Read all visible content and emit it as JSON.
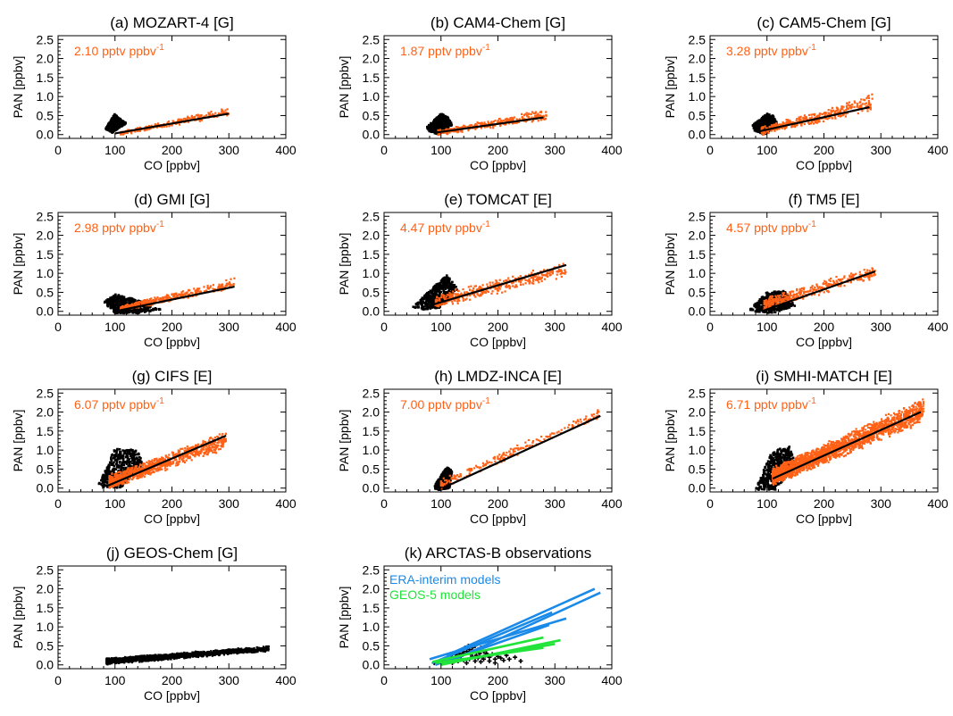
{
  "figure": {
    "orange": "#ff6116",
    "black": "#000000",
    "blue": "#1a8ae8",
    "green": "#22e33a"
  },
  "chart_data": [
    {
      "type": "scatter",
      "title": "(a) MOZART-4 [G]",
      "xlabel": "CO [ppbv]",
      "ylabel": "PAN [ppbv]",
      "xlim": [
        0,
        400
      ],
      "ylim": [
        -0.1,
        2.6
      ],
      "xticks": [
        "0",
        "100",
        "200",
        "300",
        "400"
      ],
      "yticks": [
        "0.0",
        "0.5",
        "1.0",
        "1.5",
        "2.0",
        "2.5"
      ],
      "slope_label": "2.10 pptv ppbv",
      "slope_exponent": "-1",
      "fit_line": {
        "x": [
          100,
          300
        ],
        "y": [
          0.03,
          0.55
        ]
      },
      "clouds": [
        {
          "color": "black",
          "kind": "region",
          "x": [
            85,
            100,
            102,
            120,
            95,
            83
          ],
          "y": [
            0.2,
            0.55,
            0.5,
            0.3,
            0.05,
            0.15
          ]
        },
        {
          "color": "orange",
          "kind": "cone",
          "x": [
            110,
            300
          ],
          "lower": [
            -0.02,
            0.48
          ],
          "upper": [
            0.08,
            0.72
          ],
          "n": 260
        }
      ]
    },
    {
      "type": "scatter",
      "title": "(b) CAM4-Chem [G]",
      "xlabel": "CO [ppbv]",
      "ylabel": "PAN [ppbv]",
      "xlim": [
        0,
        400
      ],
      "ylim": [
        -0.1,
        2.6
      ],
      "xticks": [
        "0",
        "100",
        "200",
        "300",
        "400"
      ],
      "yticks": [
        "0.0",
        "0.5",
        "1.0",
        "1.5",
        "2.0",
        "2.5"
      ],
      "slope_label": "1.87 pptv ppbv",
      "slope_exponent": "-1",
      "fit_line": {
        "x": [
          90,
          280
        ],
        "y": [
          0.05,
          0.45
        ]
      },
      "clouds": [
        {
          "color": "black",
          "kind": "region",
          "x": [
            75,
            100,
            110,
            120,
            95,
            78
          ],
          "y": [
            0.2,
            0.55,
            0.5,
            0.25,
            0.0,
            0.1
          ]
        },
        {
          "color": "orange",
          "kind": "cone",
          "x": [
            95,
            285
          ],
          "lower": [
            -0.02,
            0.35
          ],
          "upper": [
            0.12,
            0.7
          ],
          "n": 320
        }
      ]
    },
    {
      "type": "scatter",
      "title": "(c) CAM5-Chem [G]",
      "xlabel": "CO [ppbv]",
      "ylabel": "PAN [ppbv]",
      "xlim": [
        0,
        400
      ],
      "ylim": [
        -0.1,
        2.6
      ],
      "xticks": [
        "0",
        "100",
        "200",
        "300",
        "400"
      ],
      "yticks": [
        "0.0",
        "0.5",
        "1.0",
        "1.5",
        "2.0",
        "2.5"
      ],
      "slope_label": "3.28 pptv ppbv",
      "slope_exponent": "-1",
      "fit_line": {
        "x": [
          85,
          280
        ],
        "y": [
          0.08,
          0.72
        ]
      },
      "clouds": [
        {
          "color": "black",
          "kind": "region",
          "x": [
            75,
            100,
            110,
            120,
            95,
            78
          ],
          "y": [
            0.25,
            0.55,
            0.5,
            0.25,
            0.0,
            0.1
          ]
        },
        {
          "color": "orange",
          "kind": "cone",
          "x": [
            90,
            285
          ],
          "lower": [
            -0.02,
            0.55
          ],
          "upper": [
            0.2,
            1.08
          ],
          "n": 360
        }
      ]
    },
    {
      "type": "scatter",
      "title": "(d) GMI [G]",
      "xlabel": "CO [ppbv]",
      "ylabel": "PAN [ppbv]",
      "xlim": [
        0,
        400
      ],
      "ylim": [
        -0.1,
        2.6
      ],
      "xticks": [
        "0",
        "100",
        "200",
        "300",
        "400"
      ],
      "yticks": [
        "0.0",
        "0.5",
        "1.0",
        "1.5",
        "2.0",
        "2.5"
      ],
      "slope_label": "2.98 pptv ppbv",
      "slope_exponent": "-1",
      "fit_line": {
        "x": [
          100,
          310
        ],
        "y": [
          0.0,
          0.65
        ]
      },
      "clouds": [
        {
          "color": "black",
          "kind": "region",
          "x": [
            80,
            100,
            130,
            180,
            140,
            100
          ],
          "y": [
            0.25,
            0.45,
            0.35,
            0.05,
            -0.05,
            -0.05
          ]
        },
        {
          "color": "orange",
          "kind": "cone",
          "x": [
            110,
            310
          ],
          "lower": [
            0.0,
            0.55
          ],
          "upper": [
            0.15,
            0.9
          ],
          "n": 360
        }
      ]
    },
    {
      "type": "scatter",
      "title": "(e) TOMCAT [E]",
      "xlabel": "CO [ppbv]",
      "ylabel": "PAN [ppbv]",
      "xlim": [
        0,
        400
      ],
      "ylim": [
        -0.1,
        2.6
      ],
      "xticks": [
        "0",
        "100",
        "200",
        "300",
        "400"
      ],
      "yticks": [
        "0.0",
        "0.5",
        "1.0",
        "1.5",
        "2.0",
        "2.5"
      ],
      "slope_label": "4.47 pptv ppbv",
      "slope_exponent": "-1",
      "fit_line": {
        "x": [
          80,
          320
        ],
        "y": [
          0.15,
          1.22
        ]
      },
      "clouds": [
        {
          "color": "black",
          "kind": "region",
          "x": [
            50,
            80,
            110,
            130,
            100,
            70
          ],
          "y": [
            0.1,
            0.55,
            0.95,
            0.6,
            0.1,
            0.05
          ]
        },
        {
          "color": "orange",
          "kind": "cone",
          "x": [
            90,
            320
          ],
          "lower": [
            0.05,
            0.9
          ],
          "upper": [
            0.45,
            1.3
          ],
          "n": 380
        }
      ]
    },
    {
      "type": "scatter",
      "title": "(f) TM5 [E]",
      "xlabel": "CO [ppbv]",
      "ylabel": "PAN [ppbv]",
      "xlim": [
        0,
        400
      ],
      "ylim": [
        -0.1,
        2.6
      ],
      "xticks": [
        "0",
        "100",
        "200",
        "300",
        "400"
      ],
      "yticks": [
        "0.0",
        "0.5",
        "1.0",
        "1.5",
        "2.0",
        "2.5"
      ],
      "slope_label": "4.57 pptv ppbv",
      "slope_exponent": "-1",
      "fit_line": {
        "x": [
          90,
          290
        ],
        "y": [
          0.0,
          1.05
        ]
      },
      "clouds": [
        {
          "color": "black",
          "kind": "region",
          "x": [
            70,
            100,
            130,
            150,
            110,
            75
          ],
          "y": [
            0.05,
            0.5,
            0.55,
            0.15,
            -0.05,
            0.0
          ]
        },
        {
          "color": "orange",
          "kind": "cone",
          "x": [
            95,
            290
          ],
          "lower": [
            0.0,
            0.85
          ],
          "upper": [
            0.35,
            1.25
          ],
          "n": 360
        }
      ]
    },
    {
      "type": "scatter",
      "title": "(g) CIFS [E]",
      "xlabel": "CO [ppbv]",
      "ylabel": "PAN [ppbv]",
      "xlim": [
        0,
        400
      ],
      "ylim": [
        -0.1,
        2.6
      ],
      "xticks": [
        "0",
        "100",
        "200",
        "300",
        "400"
      ],
      "yticks": [
        "0.0",
        "0.5",
        "1.0",
        "1.5",
        "2.0",
        "2.5"
      ],
      "slope_label": "6.07 pptv ppbv",
      "slope_exponent": "-1",
      "fit_line": {
        "x": [
          85,
          295
        ],
        "y": [
          0.05,
          1.38
        ]
      },
      "clouds": [
        {
          "color": "black",
          "kind": "region",
          "x": [
            70,
            100,
            140,
            150,
            110,
            75
          ],
          "y": [
            0.05,
            1.05,
            1.0,
            0.6,
            0.0,
            0.0
          ]
        },
        {
          "color": "orange",
          "kind": "cone",
          "x": [
            90,
            295
          ],
          "lower": [
            -0.05,
            1.0
          ],
          "upper": [
            0.35,
            1.52
          ],
          "n": 900
        }
      ]
    },
    {
      "type": "scatter",
      "title": "(h) LMDZ-INCA [E]",
      "xlabel": "CO [ppbv]",
      "ylabel": "PAN [ppbv]",
      "xlim": [
        0,
        400
      ],
      "ylim": [
        -0.1,
        2.6
      ],
      "xticks": [
        "0",
        "100",
        "200",
        "300",
        "400"
      ],
      "yticks": [
        "0.0",
        "0.5",
        "1.0",
        "1.5",
        "2.0",
        "2.5"
      ],
      "slope_label": "7.00 pptv ppbv",
      "slope_exponent": "-1",
      "fit_line": {
        "x": [
          110,
          380
        ],
        "y": [
          0.05,
          1.9
        ]
      },
      "clouds": [
        {
          "color": "black",
          "kind": "region",
          "x": [
            90,
            110,
            120,
            115,
            95,
            88
          ],
          "y": [
            0.1,
            0.55,
            0.45,
            0.0,
            -0.05,
            0.0
          ]
        },
        {
          "color": "orange",
          "kind": "cone",
          "x": [
            100,
            380
          ],
          "lower": [
            -0.05,
            1.85
          ],
          "upper": [
            0.25,
            2.1
          ],
          "n": 200
        }
      ]
    },
    {
      "type": "scatter",
      "title": "(i) SMHI-MATCH [E]",
      "xlabel": "CO [ppbv]",
      "ylabel": "PAN [ppbv]",
      "xlim": [
        0,
        400
      ],
      "ylim": [
        -0.1,
        2.6
      ],
      "xticks": [
        "0",
        "100",
        "200",
        "300",
        "400"
      ],
      "yticks": [
        "0.0",
        "0.5",
        "1.0",
        "1.5",
        "2.0",
        "2.5"
      ],
      "slope_label": "6.71 pptv ppbv",
      "slope_exponent": "-1",
      "fit_line": {
        "x": [
          110,
          370
        ],
        "y": [
          0.25,
          2.0
        ]
      },
      "clouds": [
        {
          "color": "black",
          "kind": "region",
          "x": [
            80,
            110,
            140,
            150,
            115,
            85
          ],
          "y": [
            0.0,
            1.0,
            1.1,
            0.6,
            -0.05,
            -0.05
          ]
        },
        {
          "color": "orange",
          "kind": "cone",
          "x": [
            110,
            375
          ],
          "lower": [
            0.05,
            1.7
          ],
          "upper": [
            0.55,
            2.4
          ],
          "n": 2000
        }
      ]
    },
    {
      "type": "scatter",
      "title": "(j) GEOS-Chem [G]",
      "xlabel": "CO [ppbv]",
      "ylabel": "PAN [ppbv]",
      "xlim": [
        0,
        400
      ],
      "ylim": [
        -0.1,
        2.6
      ],
      "xticks": [
        "0",
        "100",
        "200",
        "300",
        "400"
      ],
      "yticks": [
        "0.0",
        "0.5",
        "1.0",
        "1.5",
        "2.0",
        "2.5"
      ],
      "clouds": [
        {
          "color": "black",
          "kind": "cone",
          "x": [
            85,
            370
          ],
          "lower": [
            0.0,
            0.35
          ],
          "upper": [
            0.18,
            0.5
          ],
          "n": 1600
        }
      ]
    },
    {
      "type": "scatter",
      "title": "(k) ARCTAS-B observations",
      "xlabel": "CO [ppbv]",
      "ylabel": "PAN [ppbv]",
      "xlim": [
        0,
        400
      ],
      "ylim": [
        -0.1,
        2.6
      ],
      "xticks": [
        "0",
        "100",
        "200",
        "300",
        "400"
      ],
      "yticks": [
        "0.0",
        "0.5",
        "1.0",
        "1.5",
        "2.0",
        "2.5"
      ],
      "legend": [
        {
          "label": "ERA-interim models",
          "color": "blue"
        },
        {
          "label": "GEOS-5 models",
          "color": "green"
        }
      ],
      "lines": [
        {
          "color": "blue",
          "x": [
            110,
            370
          ],
          "y": [
            0.25,
            2.0
          ]
        },
        {
          "color": "blue",
          "x": [
            110,
            380
          ],
          "y": [
            0.05,
            1.9
          ]
        },
        {
          "color": "blue",
          "x": [
            85,
            295
          ],
          "y": [
            0.05,
            1.38
          ]
        },
        {
          "color": "blue",
          "x": [
            90,
            290
          ],
          "y": [
            0.0,
            1.05
          ]
        },
        {
          "color": "blue",
          "x": [
            80,
            320
          ],
          "y": [
            0.15,
            1.22
          ]
        },
        {
          "color": "green",
          "x": [
            85,
            280
          ],
          "y": [
            0.08,
            0.72
          ]
        },
        {
          "color": "green",
          "x": [
            100,
            310
          ],
          "y": [
            0.0,
            0.65
          ]
        },
        {
          "color": "green",
          "x": [
            100,
            300
          ],
          "y": [
            0.03,
            0.55
          ]
        },
        {
          "color": "green",
          "x": [
            90,
            280
          ],
          "y": [
            0.05,
            0.45
          ]
        }
      ],
      "points": {
        "color": "black",
        "x": [
          88,
          95,
          100,
          105,
          110,
          112,
          118,
          120,
          125,
          128,
          130,
          132,
          135,
          138,
          140,
          142,
          145,
          148,
          150,
          152,
          155,
          158,
          160,
          162,
          165,
          168,
          170,
          172,
          175,
          178,
          180,
          185,
          190,
          195,
          200,
          205,
          210,
          215,
          220,
          230,
          240,
          145,
          150,
          155,
          160,
          165,
          170,
          140,
          135,
          130,
          125,
          175,
          185,
          195,
          120,
          115
        ],
        "y": [
          0.05,
          0.08,
          0.1,
          0.12,
          0.15,
          0.1,
          0.18,
          0.2,
          0.15,
          0.25,
          0.2,
          0.3,
          0.25,
          0.35,
          0.3,
          0.45,
          0.35,
          0.5,
          0.4,
          0.3,
          0.45,
          0.35,
          0.5,
          0.25,
          0.4,
          0.3,
          0.45,
          0.2,
          0.35,
          0.25,
          0.3,
          0.2,
          0.28,
          0.15,
          0.22,
          0.18,
          0.12,
          0.25,
          0.15,
          0.2,
          0.1,
          0.05,
          0.15,
          0.22,
          0.1,
          0.18,
          0.08,
          0.12,
          0.22,
          0.1,
          0.28,
          0.15,
          0.1,
          0.05,
          0.05,
          0.12
        ]
      }
    }
  ]
}
